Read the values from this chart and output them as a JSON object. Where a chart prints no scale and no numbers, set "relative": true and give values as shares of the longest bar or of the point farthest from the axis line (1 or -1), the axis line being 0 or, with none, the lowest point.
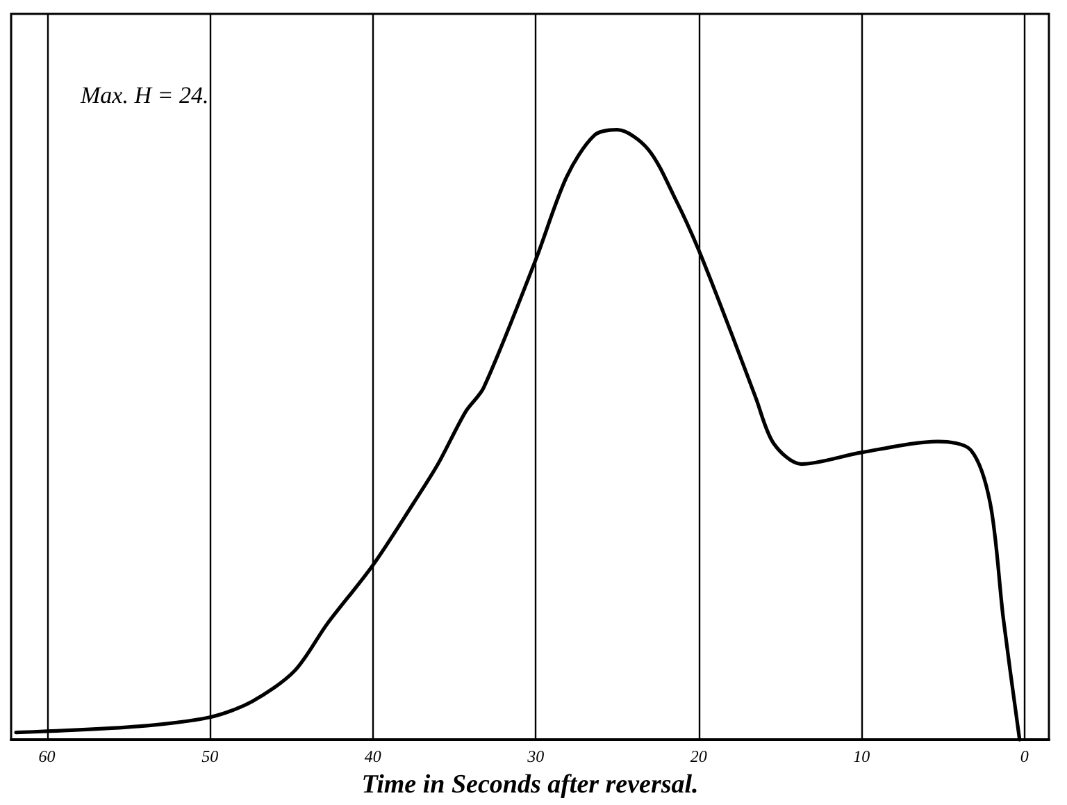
{
  "chart_data": {
    "type": "line",
    "relative": true,
    "xlabel": "Time in Seconds after reversal.",
    "annotations": [
      "Max. H = 24."
    ],
    "x": [
      61.9,
      60,
      54.4,
      50,
      47.4,
      44.8,
      42.8,
      40,
      37.5,
      36.0,
      34.3,
      33.2,
      30,
      28.1,
      26.4,
      25,
      23.1,
      21.4,
      20,
      18.0,
      16.5,
      15.4,
      13.7,
      10,
      5.3,
      3.3,
      2.1,
      1.3,
      0.3
    ],
    "series": [
      {
        "color": "#000000",
        "values": [
          0.012,
          0.014,
          0.022,
          0.037,
          0.063,
          0.113,
          0.19,
          0.286,
          0.388,
          0.452,
          0.538,
          0.577,
          0.787,
          0.923,
          0.991,
          1.0,
          0.968,
          0.885,
          0.803,
          0.667,
          0.561,
          0.486,
          0.452,
          0.471,
          0.489,
          0.475,
          0.387,
          0.199,
          0.0
        ]
      }
    ],
    "xlim": [
      62.2,
      -1.5
    ],
    "xticks": [
      60,
      50,
      40,
      30,
      20,
      10,
      0
    ],
    "grid": "x",
    "tick_labels": "x",
    "marker": "none",
    "line_style": "solid"
  }
}
